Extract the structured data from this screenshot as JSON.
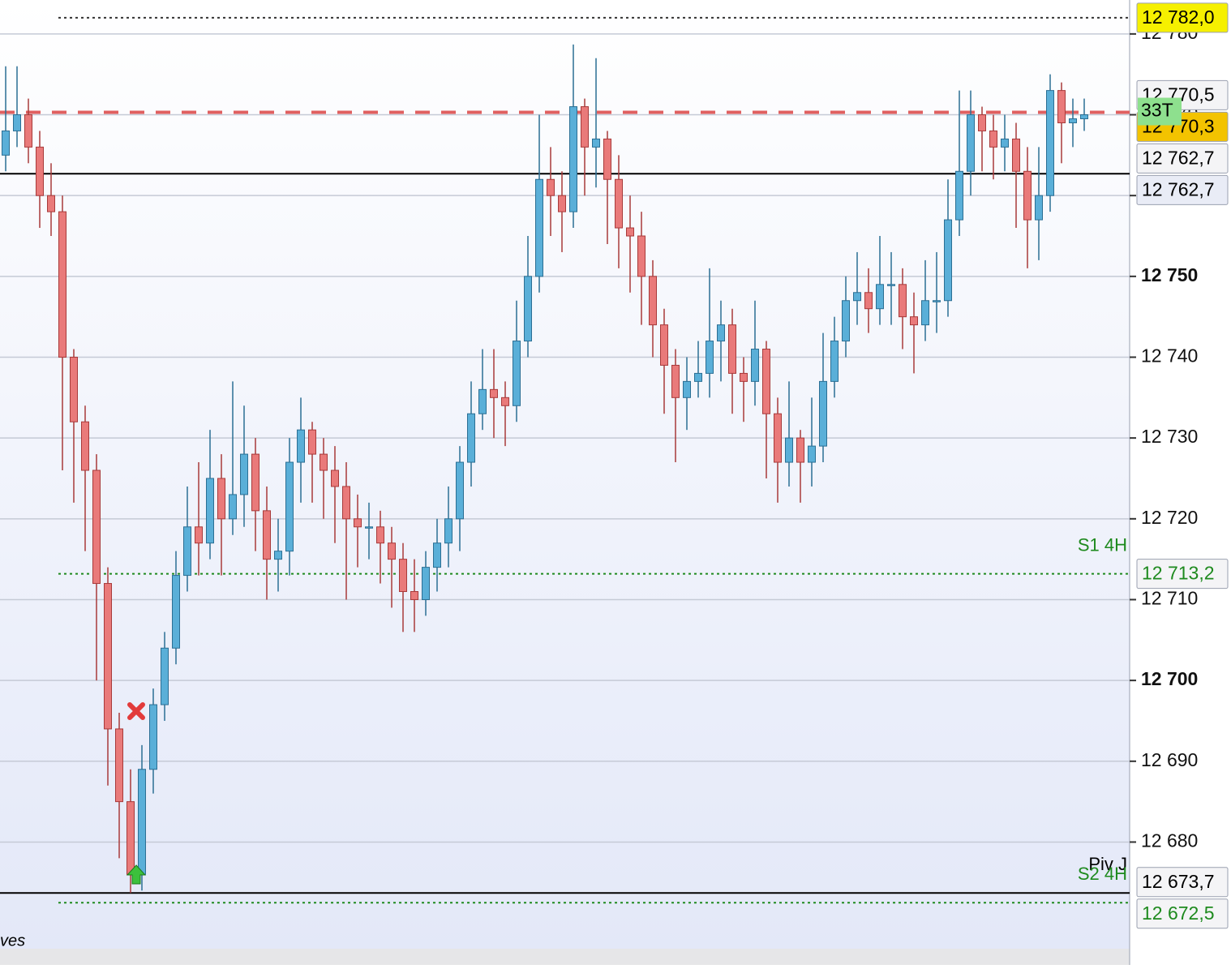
{
  "chart_data": {
    "type": "candlestick",
    "up_color": "#5aafd8",
    "down_color": "#e97a7a",
    "up_edge": "#2b6f94",
    "down_edge": "#a83a3a",
    "ylim": [
      12666.8,
      12784.2
    ],
    "yticks": [
      {
        "value": 12680,
        "label": "12 680"
      },
      {
        "value": 12690,
        "label": "12 690"
      },
      {
        "value": 12700,
        "label": "12 700"
      },
      {
        "value": 12710,
        "label": "12 710"
      },
      {
        "value": 12720,
        "label": "12 720"
      },
      {
        "value": 12730,
        "label": "12 730"
      },
      {
        "value": 12740,
        "label": "12 740"
      },
      {
        "value": 12750,
        "label": "12 750"
      },
      {
        "value": 12760,
        "label": "12 760"
      },
      {
        "value": 12770,
        "label": "12 770"
      },
      {
        "value": 12780,
        "label": "12 780"
      }
    ],
    "grid": true,
    "open": [
      12765,
      12768,
      12770,
      12766,
      12760,
      12758,
      12740,
      12732,
      12726,
      12712,
      12694,
      12685,
      12676,
      12689,
      12697,
      12704,
      12713,
      12719,
      12717,
      12725,
      12720,
      12723,
      12728,
      12721,
      12715,
      12716,
      12727,
      12731,
      12728,
      12726,
      12724,
      12720,
      12719,
      12719,
      12717,
      12715,
      12711,
      12710,
      12714,
      12717,
      12720,
      12727,
      12733,
      12736,
      12735,
      12734,
      12742,
      12750,
      12762,
      12760,
      12758,
      12771,
      12766,
      12767,
      12762,
      12756,
      12755,
      12750,
      12744,
      12739,
      12735,
      12737,
      12738,
      12742,
      12744,
      12738,
      12737,
      12741,
      12733,
      12727,
      12730,
      12727,
      12729,
      12737,
      12742,
      12747,
      12748,
      12746,
      12749,
      12749,
      12745,
      12744,
      12747,
      12747,
      12757,
      12763,
      12770,
      12768,
      12766,
      12767,
      12763,
      12757,
      12760,
      12773,
      12769,
      12769.5
    ],
    "high": [
      12776,
      12776,
      12772,
      12768,
      12764,
      12760,
      12741,
      12734,
      12728,
      12714,
      12696,
      12689,
      12692,
      12699,
      12706,
      12716,
      12724,
      12727,
      12731,
      12728,
      12737,
      12734,
      12730,
      12724,
      12720,
      12730,
      12735,
      12732,
      12730,
      12729,
      12727,
      12723,
      12722,
      12721,
      12719,
      12717,
      12715,
      12716,
      12720,
      12724,
      12729,
      12737,
      12741,
      12741,
      12737,
      12747,
      12755,
      12770,
      12766,
      12763,
      12778.7,
      12772,
      12777,
      12768,
      12765,
      12760,
      12758,
      12752,
      12746,
      12741,
      12740,
      12742,
      12751,
      12747,
      12746,
      12740,
      12747,
      12742,
      12735,
      12737,
      12731,
      12735,
      12743,
      12745,
      12750,
      12753,
      12751,
      12755,
      12753,
      12751,
      12748,
      12752,
      12753,
      12762,
      12773,
      12773,
      12771,
      12770,
      12770,
      12769,
      12766,
      12766,
      12775,
      12774,
      12772,
      12772
    ],
    "low": [
      12763,
      12766,
      12764,
      12756,
      12755,
      12726,
      12722,
      12716,
      12700,
      12687,
      12678,
      12673.7,
      12674,
      12686,
      12695,
      12702,
      12711,
      12713,
      12715,
      12713,
      12718,
      12719,
      12716,
      12710,
      12711,
      12713,
      12722,
      12722,
      12720,
      12717,
      12710,
      12714,
      12715,
      12712,
      12709,
      12706,
      12706,
      12708,
      12711,
      12714,
      12716,
      12724,
      12731,
      12730,
      12729,
      12732,
      12740,
      12748,
      12755,
      12753,
      12756,
      12760,
      12761,
      12754,
      12751,
      12748,
      12744,
      12740,
      12733,
      12727,
      12731,
      12735,
      12735,
      12737,
      12733,
      12732,
      12734,
      12725,
      12722,
      12724,
      12722,
      12724,
      12727,
      12735,
      12740,
      12744,
      12743,
      12744,
      12744,
      12741,
      12738,
      12742,
      12743,
      12745,
      12755,
      12760,
      12763,
      12762,
      12763,
      12756,
      12751,
      12752,
      12758,
      12764,
      12766,
      12768
    ],
    "close": [
      12768,
      12770,
      12766,
      12760,
      12758,
      12740,
      12732,
      12726,
      12712,
      12694,
      12685,
      12676,
      12689,
      12697,
      12704,
      12713,
      12719,
      12717,
      12725,
      12720,
      12723,
      12728,
      12721,
      12715,
      12716,
      12727,
      12731,
      12728,
      12726,
      12724,
      12720,
      12719,
      12719,
      12717,
      12715,
      12711,
      12710,
      12714,
      12717,
      12720,
      12727,
      12733,
      12736,
      12735,
      12734,
      12742,
      12750,
      12762,
      12760,
      12758,
      12771,
      12766,
      12767,
      12762,
      12756,
      12755,
      12750,
      12744,
      12739,
      12735,
      12737,
      12738,
      12742,
      12744,
      12738,
      12737,
      12741,
      12733,
      12727,
      12730,
      12727,
      12729,
      12737,
      12742,
      12747,
      12748,
      12746,
      12749,
      12749,
      12745,
      12744,
      12747,
      12747,
      12757,
      12763,
      12770,
      12768,
      12766,
      12767,
      12763,
      12757,
      12760,
      12773,
      12769,
      12769.5,
      12770
    ],
    "levels": [
      {
        "value": 12782,
        "label": "12 782,0",
        "line": "dotted",
        "line_color": "#333333",
        "box_color": "#f6f000",
        "text_color": "#000000"
      },
      {
        "value": 12770.5,
        "label": "12 770,5",
        "line": "none",
        "line_color": "#000000",
        "box_color": "#f4f4f6",
        "text_color": "#000000"
      },
      {
        "value": 12770.3,
        "label": "12 770,3",
        "tag": "33T",
        "line": "dashed",
        "line_color": "#e06060",
        "box_color": "#f3c300",
        "text_color": "#000000"
      },
      {
        "value": 12762.7,
        "label": "12 762,7",
        "line": "solid",
        "line_color": "#000000",
        "box_color": "#f4f4f6",
        "text_color": "#000000"
      },
      {
        "value": 12762.7,
        "label": "12 762,7",
        "line": "none",
        "line_color": "#000000",
        "box_color": "#e9ecf6",
        "text_color": "#000000"
      },
      {
        "value": 12713.2,
        "label": "12 713,2",
        "name": "S1 4H",
        "line": "dotted",
        "line_color": "#1e8a1e",
        "box_color": "#f4f4f6",
        "text_color": "#1e8a1e"
      },
      {
        "value": 12673.7,
        "label": "12 673,7",
        "name": "Piv J",
        "line": "solid",
        "line_color": "#000000",
        "box_color": "#f4f4f6",
        "text_color": "#000000"
      },
      {
        "value": 12672.5,
        "label": "12 672,5",
        "name": "S2 4H",
        "line": "dotted",
        "line_color": "#1e8a1e",
        "box_color": "#f4f4f6",
        "text_color": "#1e8a1e"
      }
    ],
    "footer_text": "ves"
  }
}
